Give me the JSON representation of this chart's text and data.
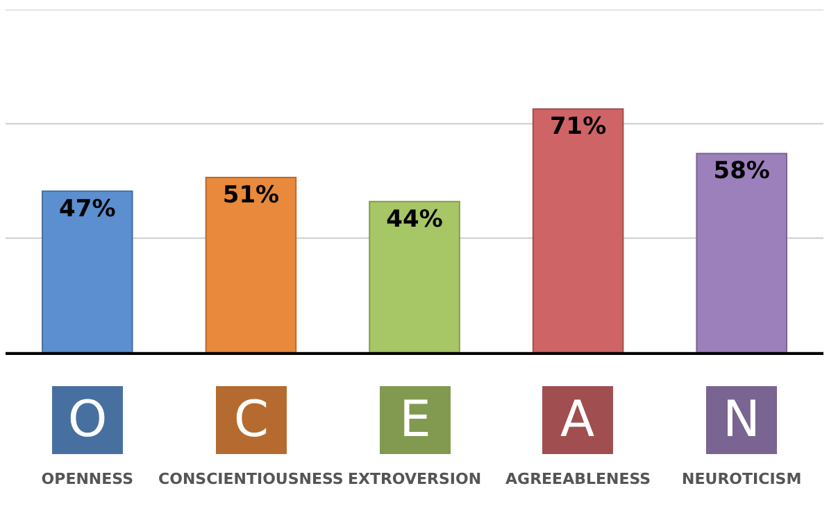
{
  "chart_data": {
    "type": "bar",
    "categories": [
      "OPENNESS",
      "CONSCIENTIOUSNESS",
      "EXTROVERSION",
      "AGREEABLENESS",
      "NEUROTICISM"
    ],
    "values": [
      47,
      51,
      44,
      71,
      58
    ],
    "value_labels": [
      "47%",
      "51%",
      "44%",
      "71%",
      "58%"
    ],
    "colors": [
      "#5b8fcf",
      "#e8893c",
      "#a7c666",
      "#cf6466",
      "#9b80bb"
    ],
    "ylim": [
      0,
      100
    ],
    "yticks": [
      {
        "value": 0,
        "label": null
      },
      {
        "value": 33.3,
        "label": null
      },
      {
        "value": 66.7,
        "label": null
      },
      {
        "value": 100,
        "label": null
      }
    ],
    "grid": "y",
    "tick_labels": "x",
    "annotations": [
      "O",
      "C",
      "E",
      "A",
      "N"
    ]
  }
}
